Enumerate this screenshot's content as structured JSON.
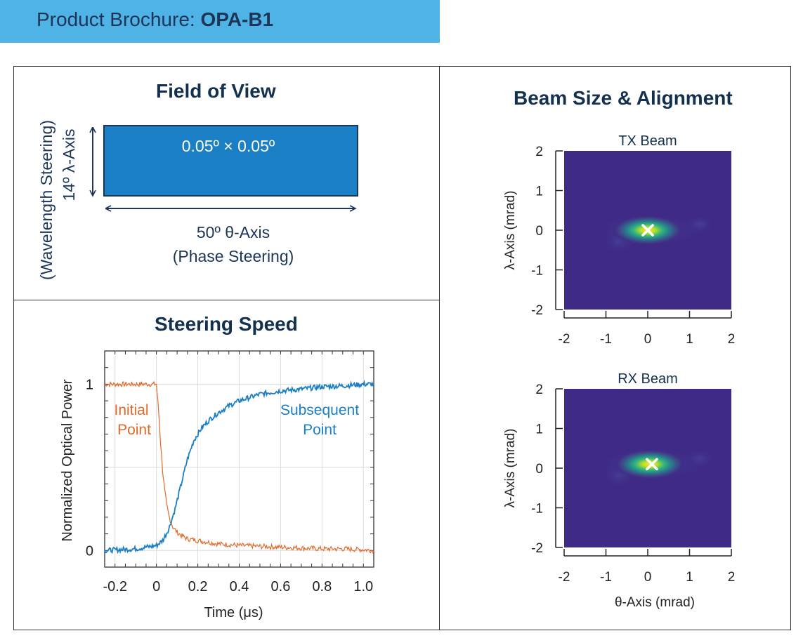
{
  "header": {
    "prefix": "Product Brochure: ",
    "product": "OPA-B1",
    "color": "#4fb3e6"
  },
  "fov": {
    "title": "Field of View",
    "box_label": "0.05º × 0.05º",
    "v_axis_line1": "(Wavelength Steering)",
    "v_axis_line2": "14º λ-Axis",
    "h_axis_line1": "50º θ-Axis",
    "h_axis_line2": "(Phase Steering)",
    "box_color": "#1a7fc4"
  },
  "steering": {
    "title": "Steering Speed",
    "initial_label_1": "Initial",
    "initial_label_2": "Point",
    "subsequent_label_1": "Subsequent",
    "subsequent_label_2": "Point"
  },
  "beam": {
    "title": "Beam Size & Alignment",
    "tx_title": "TX Beam",
    "rx_title": "RX Beam",
    "ylabel": "λ-Axis (mrad)",
    "xlabel": "θ-Axis (mrad)",
    "ticks": [
      "-2",
      "-1",
      "0",
      "1",
      "2"
    ],
    "background_color": "#3f2a86"
  },
  "chart_data": [
    {
      "type": "line",
      "xlabel": "Time (μs)",
      "ylabel": "Normalized Optical Power",
      "xlim": [
        -0.25,
        1.05
      ],
      "ylim": [
        -0.1,
        1.2
      ],
      "x_ticks": [
        "-0.2",
        "0",
        "0.2",
        "0.4",
        "0.6",
        "0.8",
        "1.0"
      ],
      "y_ticks": [
        "0",
        "1"
      ],
      "grid": true,
      "series": [
        {
          "name": "Initial Point",
          "color": "#e06a2c",
          "x": [
            -0.25,
            -0.1,
            0.0,
            0.01,
            0.02,
            0.03,
            0.04,
            0.05,
            0.06,
            0.07,
            0.08,
            0.1,
            0.12,
            0.15,
            0.2,
            0.3,
            0.4,
            0.5,
            0.6,
            0.7,
            0.8,
            0.9,
            1.0,
            1.05
          ],
          "y": [
            1.0,
            1.0,
            1.0,
            0.85,
            0.65,
            0.48,
            0.36,
            0.27,
            0.21,
            0.17,
            0.14,
            0.11,
            0.09,
            0.07,
            0.06,
            0.04,
            0.03,
            0.025,
            0.02,
            0.015,
            0.01,
            0.01,
            0.005,
            0.0
          ]
        },
        {
          "name": "Subsequent Point",
          "color": "#1a7fc4",
          "x": [
            -0.25,
            -0.1,
            0.0,
            0.03,
            0.06,
            0.09,
            0.12,
            0.15,
            0.18,
            0.22,
            0.26,
            0.3,
            0.35,
            0.4,
            0.5,
            0.6,
            0.7,
            0.8,
            0.9,
            1.0,
            1.05
          ],
          "y": [
            0.0,
            0.01,
            0.03,
            0.06,
            0.13,
            0.25,
            0.4,
            0.55,
            0.66,
            0.74,
            0.79,
            0.83,
            0.87,
            0.9,
            0.94,
            0.96,
            0.97,
            0.985,
            0.99,
            1.0,
            1.0
          ]
        }
      ]
    },
    {
      "type": "heatmap",
      "title": "TX Beam",
      "xlabel": "",
      "ylabel": "λ-Axis (mrad)",
      "xlim": [
        -2,
        2
      ],
      "ylim": [
        -2,
        2
      ],
      "peak": [
        0.0,
        0.0
      ],
      "marker": [
        0.0,
        0.0
      ]
    },
    {
      "type": "heatmap",
      "title": "RX Beam",
      "xlabel": "θ-Axis (mrad)",
      "ylabel": "λ-Axis (mrad)",
      "xlim": [
        -2,
        2
      ],
      "ylim": [
        -2,
        2
      ],
      "peak": [
        0.05,
        0.1
      ],
      "marker": [
        0.1,
        0.1
      ]
    }
  ]
}
